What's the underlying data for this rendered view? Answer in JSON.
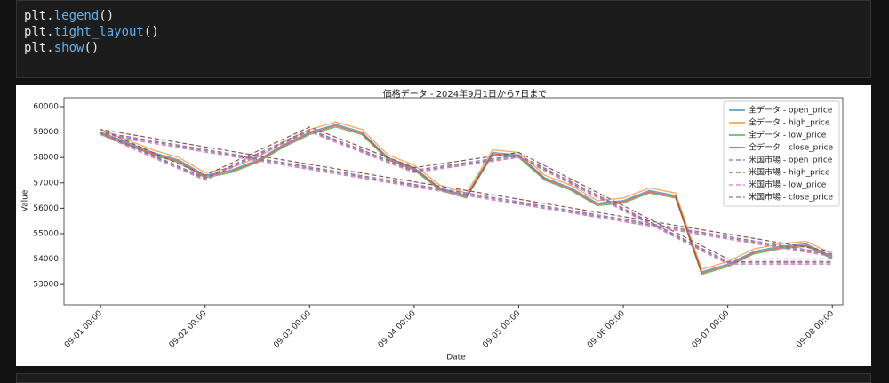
{
  "code": {
    "lines": [
      [
        "plt.",
        "legend",
        "()"
      ],
      [
        "plt.",
        "tight_layout",
        "()"
      ],
      [
        "plt.",
        "show",
        "()"
      ]
    ]
  },
  "chart_data": {
    "type": "line",
    "title": "価格データ - 2024年9月1日から7日まで",
    "x_label": "Date",
    "y_label": "Value",
    "x": [
      "09-01 00:00",
      "09-01 06:00",
      "09-01 12:00",
      "09-01 18:00",
      "09-02 00:00",
      "09-02 06:00",
      "09-02 12:00",
      "09-02 18:00",
      "09-03 00:00",
      "09-03 06:00",
      "09-03 12:00",
      "09-03 18:00",
      "09-04 00:00",
      "09-04 06:00",
      "09-04 12:00",
      "09-04 18:00",
      "09-05 00:00",
      "09-05 06:00",
      "09-05 12:00",
      "09-05 18:00",
      "09-06 00:00",
      "09-06 06:00",
      "09-06 12:00",
      "09-06 18:00",
      "09-07 00:00",
      "09-07 06:00",
      "09-07 12:00",
      "09-07 18:00",
      "09-08 00:00"
    ],
    "series": [
      {
        "name": "全データ - open_price",
        "color": "#1f77b4",
        "dash": false,
        "values": [
          59000,
          58600,
          58200,
          57900,
          57300,
          57500,
          57900,
          58500,
          59000,
          59300,
          59000,
          58000,
          57600,
          56800,
          56500,
          58200,
          58100,
          57200,
          56800,
          56200,
          56300,
          56700,
          56500,
          53500,
          53800,
          54300,
          54500,
          54600,
          54100
        ]
      },
      {
        "name": "全データ - high_price",
        "color": "#ff7f0e",
        "dash": false,
        "values": [
          59100,
          58700,
          58300,
          58000,
          57400,
          57600,
          58000,
          58600,
          59100,
          59400,
          59100,
          58100,
          57700,
          56900,
          56600,
          58300,
          58200,
          57300,
          56900,
          56300,
          56400,
          56800,
          56600,
          53600,
          53900,
          54400,
          54600,
          54700,
          54200
        ]
      },
      {
        "name": "全データ - low_price",
        "color": "#2ca02c",
        "dash": false,
        "values": [
          58900,
          58500,
          58100,
          57800,
          57200,
          57400,
          57800,
          58400,
          58900,
          59200,
          58900,
          57900,
          57500,
          56700,
          56400,
          58100,
          58000,
          57100,
          56700,
          56100,
          56200,
          56600,
          56400,
          53400,
          53700,
          54200,
          54400,
          54500,
          54000
        ]
      },
      {
        "name": "全データ - close_price",
        "color": "#d62728",
        "dash": false,
        "values": [
          58950,
          58550,
          58150,
          57850,
          57250,
          57450,
          57850,
          58450,
          58950,
          59250,
          58950,
          57950,
          57550,
          56750,
          56450,
          58150,
          58050,
          57150,
          56750,
          56150,
          56250,
          56650,
          56450,
          53450,
          53750,
          54250,
          54450,
          54550,
          54050
        ]
      },
      {
        "name": "米国市場 - open_price",
        "color": "#9467bd",
        "dash": true,
        "x": [
          "09-08 00:00",
          "09-01 00:00",
          "09-02 00:00",
          "09-03 00:00",
          "09-04 00:00",
          "09-05 00:00",
          "09-07 00:00",
          "09-08 00:00"
        ],
        "values": [
          54200,
          59000,
          57200,
          59100,
          57500,
          58100,
          53900,
          53900
        ]
      },
      {
        "name": "米国市場 - high_price",
        "color": "#8c564b",
        "dash": true,
        "x": [
          "09-08 00:00",
          "09-01 00:00",
          "09-02 00:00",
          "09-03 00:00",
          "09-04 00:00",
          "09-05 00:00",
          "09-07 00:00",
          "09-08 00:00"
        ],
        "values": [
          54300,
          59100,
          57300,
          59200,
          57600,
          58200,
          54000,
          54000
        ]
      },
      {
        "name": "米国市場 - low_price",
        "color": "#e377c2",
        "dash": true,
        "x": [
          "09-08 00:00",
          "09-01 00:00",
          "09-02 00:00",
          "09-03 00:00",
          "09-04 00:00",
          "09-05 00:00",
          "09-07 00:00",
          "09-08 00:00"
        ],
        "values": [
          54100,
          58900,
          57100,
          59000,
          57400,
          58000,
          53800,
          53800
        ]
      },
      {
        "name": "米国市場 - close_price",
        "color": "#7f7f7f",
        "dash": true,
        "x": [
          "09-08 00:00",
          "09-01 00:00",
          "09-02 00:00",
          "09-03 00:00",
          "09-04 00:00",
          "09-05 00:00",
          "09-07 00:00",
          "09-08 00:00"
        ],
        "values": [
          54150,
          58950,
          57150,
          59050,
          57450,
          58050,
          53850,
          53850
        ]
      }
    ],
    "xlim": [
      "08-31 15:36",
      "09-08 02:24"
    ],
    "xticks": [
      "09-01 00:00",
      "09-02 00:00",
      "09-03 00:00",
      "09-04 00:00",
      "09-05 00:00",
      "09-06 00:00",
      "09-07 00:00",
      "09-08 00:00"
    ],
    "ylim": [
      52200,
      60350
    ],
    "yticks": [
      53000,
      54000,
      55000,
      56000,
      57000,
      58000,
      59000,
      60000
    ],
    "legend": "upper right"
  }
}
